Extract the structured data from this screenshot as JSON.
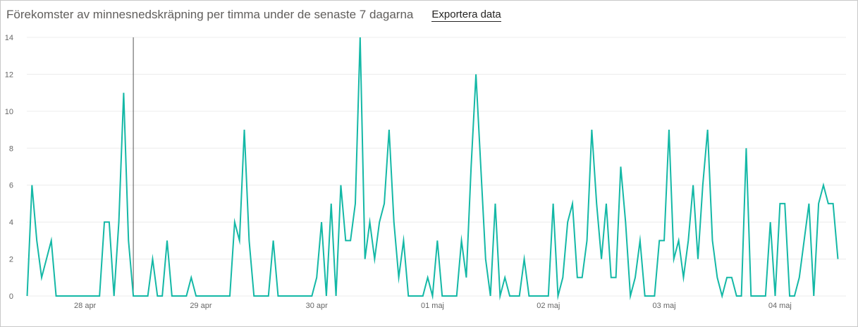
{
  "header": {
    "title": "Förekomster av minnesnedskräpning per timma under de senaste 7 dagarna",
    "export_label": "Exportera data"
  },
  "colors": {
    "line": "#14b8a6",
    "grid": "#ececec",
    "cursor": "#555555",
    "tick_text": "#666666"
  },
  "chart_data": {
    "type": "line",
    "title": "Förekomster av minnesnedskräpning per timma under de senaste 7 dagarna",
    "xlabel": "",
    "ylabel": "",
    "ylim": [
      0,
      14
    ],
    "yticks": [
      "0",
      "2",
      "4",
      "6",
      "8",
      "10",
      "12",
      "14"
    ],
    "xticks": [
      {
        "label": "28 apr",
        "index": 12
      },
      {
        "label": "29 apr",
        "index": 36
      },
      {
        "label": "30 apr",
        "index": 60
      },
      {
        "label": "01 maj",
        "index": 84
      },
      {
        "label": "02 maj",
        "index": 108
      },
      {
        "label": "03 maj",
        "index": 132
      },
      {
        "label": "04 maj",
        "index": 156
      }
    ],
    "grid": true,
    "cursor_index": 22,
    "series": [
      {
        "values": [
          0,
          6,
          3,
          1,
          2,
          3,
          0,
          0,
          0,
          0,
          0,
          0,
          0,
          0,
          0,
          0,
          4,
          4,
          0,
          4,
          11,
          3,
          0,
          0,
          0,
          0,
          2,
          0,
          0,
          3,
          0,
          0,
          0,
          0,
          1,
          0,
          0,
          0,
          0,
          0,
          0,
          0,
          0,
          4,
          3,
          9,
          3,
          0,
          0,
          0,
          0,
          3,
          0,
          0,
          0,
          0,
          0,
          0,
          0,
          0,
          1,
          4,
          0,
          5,
          0,
          6,
          3,
          3,
          5,
          14,
          2,
          4,
          2,
          4,
          5,
          9,
          4,
          1,
          3,
          0,
          0,
          0,
          0,
          1,
          0,
          3,
          0,
          0,
          0,
          0,
          3,
          1,
          7,
          12,
          7,
          2,
          0,
          5,
          0,
          1,
          0,
          0,
          0,
          2,
          0,
          0,
          0,
          0,
          0,
          5,
          0,
          1,
          4,
          5,
          1,
          1,
          3,
          9,
          5,
          2,
          5,
          1,
          1,
          7,
          4,
          0,
          1,
          3,
          0,
          0,
          0,
          3,
          3,
          9,
          2,
          3,
          1,
          3,
          6,
          2,
          6,
          9,
          3,
          1,
          0,
          1,
          1,
          0,
          0,
          8,
          0,
          0,
          0,
          0,
          4,
          0,
          5,
          5,
          0,
          0,
          1,
          3,
          5,
          0,
          5,
          6,
          5,
          5,
          2
        ]
      }
    ]
  }
}
